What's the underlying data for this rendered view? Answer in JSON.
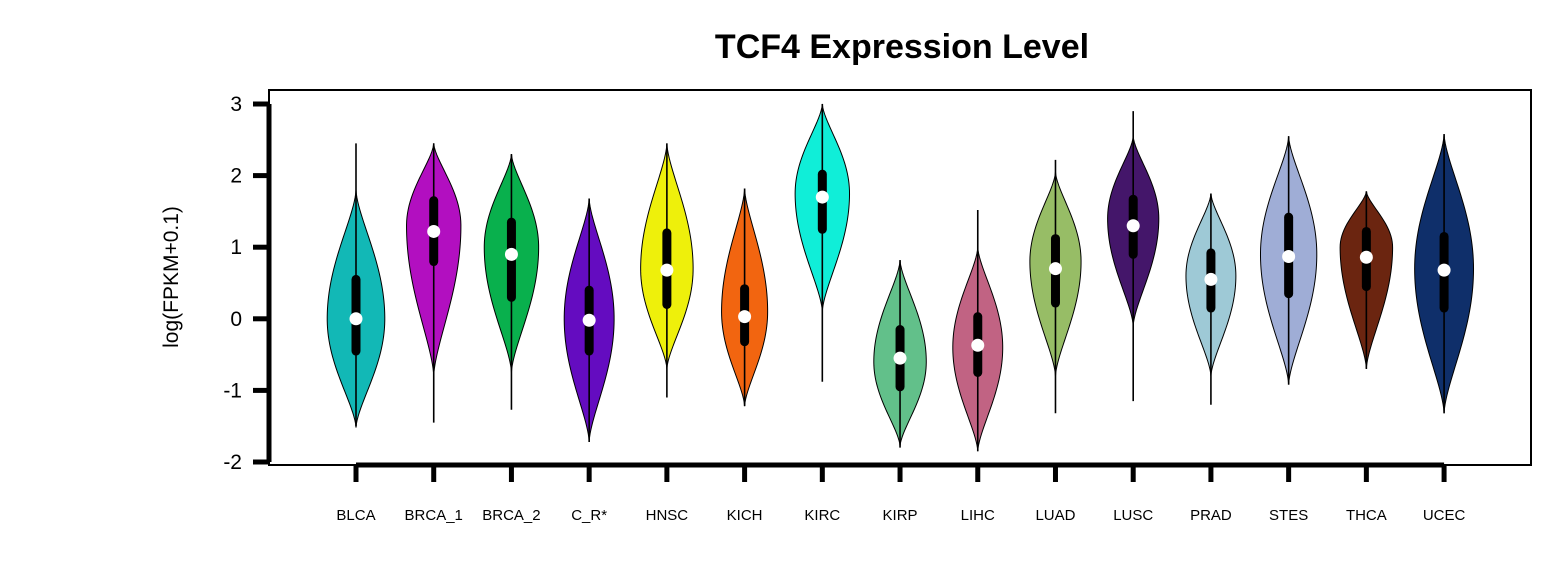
{
  "chart_data": {
    "type": "violin",
    "title": "TCF4 Expression Level",
    "ylabel": "log(FPKM+0.1)",
    "xlabel": "",
    "ylim": [
      -2,
      3
    ],
    "yticks": [
      -2,
      -1,
      0,
      1,
      2,
      3
    ],
    "grid": false,
    "legend": "none",
    "categories": [
      "BLCA",
      "BRCA_1",
      "BRCA_2",
      "C_R*",
      "HNSC",
      "KICH",
      "KIRC",
      "KIRP",
      "LIHC",
      "LUAD",
      "LUSC",
      "PRAD",
      "STES",
      "THCA",
      "UCEC"
    ],
    "series": [
      {
        "category": "BLCA",
        "color": "#12b8b6",
        "min": -1.5,
        "q1": -0.45,
        "median": 0.0,
        "q3": 0.55,
        "max": 2.45,
        "violin_min": -1.52,
        "violin_max": 1.8,
        "peak": 0.0,
        "width": 0.9
      },
      {
        "category": "BRCA_1",
        "color": "#b20fc0",
        "min": -1.45,
        "q1": 0.8,
        "median": 1.22,
        "q3": 1.65,
        "max": 2.45,
        "violin_min": -0.8,
        "violin_max": 2.45,
        "peak": 1.3,
        "width": 0.85
      },
      {
        "category": "BRCA_2",
        "color": "#09b04d",
        "min": -1.27,
        "q1": 0.3,
        "median": 0.9,
        "q3": 1.35,
        "max": 2.3,
        "violin_min": -0.75,
        "violin_max": 2.3,
        "peak": 1.0,
        "width": 0.85
      },
      {
        "category": "C_R*",
        "color": "#640cc0",
        "min": -1.72,
        "q1": -0.45,
        "median": -0.02,
        "q3": 0.4,
        "max": 1.68,
        "violin_min": -1.72,
        "violin_max": 1.68,
        "peak": 0.0,
        "width": 0.78
      },
      {
        "category": "HNSC",
        "color": "#eef00b",
        "min": -1.1,
        "q1": 0.2,
        "median": 0.68,
        "q3": 1.2,
        "max": 2.45,
        "violin_min": -0.7,
        "violin_max": 2.45,
        "peak": 0.7,
        "width": 0.82
      },
      {
        "category": "KICH",
        "color": "#f26510",
        "min": -1.22,
        "q1": -0.32,
        "median": 0.03,
        "q3": 0.42,
        "max": 1.82,
        "violin_min": -1.22,
        "violin_max": 1.82,
        "peak": 0.1,
        "width": 0.72
      },
      {
        "category": "KIRC",
        "color": "#10eed8",
        "min": -0.88,
        "q1": 1.25,
        "median": 1.7,
        "q3": 2.02,
        "max": 3.0,
        "violin_min": 0.1,
        "violin_max": 3.0,
        "peak": 1.75,
        "width": 0.85
      },
      {
        "category": "KIRP",
        "color": "#62c08a",
        "min": -1.8,
        "q1": -0.95,
        "median": -0.55,
        "q3": -0.15,
        "max": 0.82,
        "violin_min": -1.78,
        "violin_max": 0.82,
        "peak": -0.6,
        "width": 0.82
      },
      {
        "category": "LIHC",
        "color": "#c16383",
        "min": -1.85,
        "q1": -0.75,
        "median": -0.37,
        "q3": 0.03,
        "max": 1.52,
        "violin_min": -1.85,
        "violin_max": 1.0,
        "peak": -0.4,
        "width": 0.78
      },
      {
        "category": "LUAD",
        "color": "#97bd66",
        "min": -1.32,
        "q1": 0.22,
        "median": 0.7,
        "q3": 1.12,
        "max": 2.22,
        "violin_min": -0.8,
        "violin_max": 2.05,
        "peak": 0.8,
        "width": 0.8
      },
      {
        "category": "LUSC",
        "color": "#44166a",
        "min": -1.15,
        "q1": 0.9,
        "median": 1.3,
        "q3": 1.67,
        "max": 2.9,
        "violin_min": -0.1,
        "violin_max": 2.55,
        "peak": 1.4,
        "width": 0.8
      },
      {
        "category": "PRAD",
        "color": "#9ec9d6",
        "min": -1.2,
        "q1": 0.15,
        "median": 0.55,
        "q3": 0.92,
        "max": 1.75,
        "violin_min": -0.8,
        "violin_max": 1.75,
        "peak": 0.6,
        "width": 0.78
      },
      {
        "category": "STES",
        "color": "#9fadd6",
        "min": -0.92,
        "q1": 0.35,
        "median": 0.87,
        "q3": 1.42,
        "max": 2.55,
        "violin_min": -0.92,
        "violin_max": 2.55,
        "peak": 0.9,
        "width": 0.88
      },
      {
        "category": "THCA",
        "color": "#6b2510",
        "min": -0.7,
        "q1": 0.45,
        "median": 0.86,
        "q3": 1.22,
        "max": 1.78,
        "violin_min": -0.7,
        "violin_max": 1.78,
        "peak": 1.0,
        "width": 0.82
      },
      {
        "category": "UCEC",
        "color": "#0f2f6a",
        "min": -1.32,
        "q1": 0.15,
        "median": 0.68,
        "q3": 1.15,
        "max": 2.58,
        "violin_min": -1.32,
        "violin_max": 2.58,
        "peak": 0.7,
        "width": 0.92
      }
    ]
  }
}
